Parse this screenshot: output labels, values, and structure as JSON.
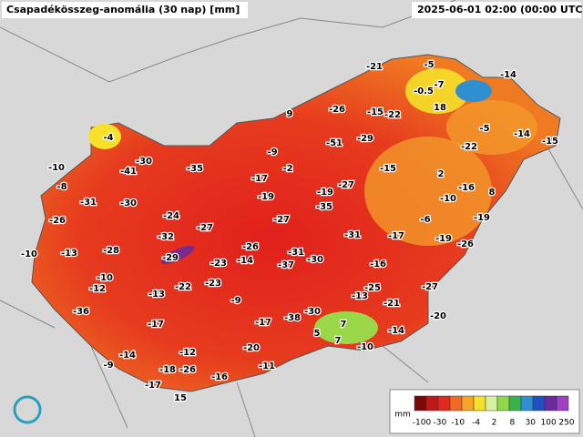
{
  "header": {
    "title": "Csapadékösszeg-anomália (30 nap) [mm]",
    "timestamp": "2025-06-01 02:00 (00:00 UTC)"
  },
  "stations": [
    -21,
    -5,
    -14,
    -0.5,
    -7,
    18,
    -26,
    -15,
    -22,
    9,
    -5,
    -14,
    -15,
    -4,
    -51,
    -29,
    -22,
    -9,
    -10,
    -30,
    -41,
    -35,
    -2,
    -17,
    -15,
    2,
    -8,
    -27,
    -16,
    8,
    -19,
    -19,
    -10,
    -31,
    -30,
    -35,
    -26,
    -24,
    -27,
    -6,
    -19,
    -27,
    -31,
    -17,
    -19,
    -32,
    -26,
    -26,
    -10,
    -13,
    -28,
    -29,
    -31,
    -14,
    -23,
    -37,
    -30,
    -16,
    -10,
    -12,
    -22,
    -23,
    -25,
    -27,
    -13,
    -9,
    -13,
    -21,
    -36,
    -30,
    -17,
    -17,
    -38,
    7,
    -20,
    5,
    7,
    -14,
    -10,
    -12,
    -14,
    -20,
    -9,
    -18,
    -26,
    -11,
    -16,
    -17,
    15
  ],
  "legend": {
    "unit": "mm",
    "labels": [
      -100,
      -30,
      -10,
      -4,
      2,
      8,
      30,
      100,
      250
    ]
  }
}
